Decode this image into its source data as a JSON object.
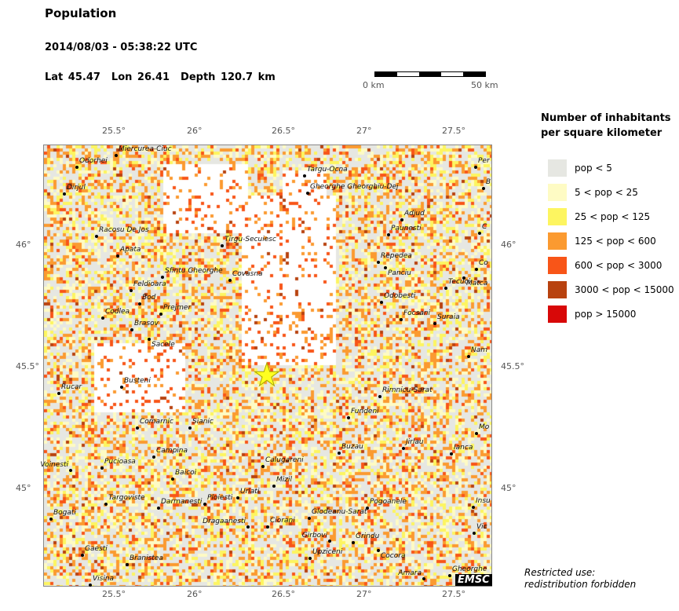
{
  "header": {
    "title": "Population",
    "datetime": "2014/08/03 - 05:38:22 UTC",
    "lat": "Lat 45.47",
    "lon": "Lon  26.41",
    "depth": "Depth 120.7 km"
  },
  "scale_bar": {
    "left": "0 km",
    "right": "50 km"
  },
  "axes": {
    "lon_ticks": [
      "25.5°",
      "26°",
      "26.5°",
      "27°",
      "27.5°"
    ],
    "lat_ticks": [
      "46°",
      "45.5°",
      "45°"
    ]
  },
  "epicenter": {
    "icon": "star-icon",
    "color": "#ffff20"
  },
  "cities": [
    "Miercurea-Ciuc",
    "Odorhei",
    "Dirjul",
    "Racosu De Jos",
    "Apata",
    "Sfintu Gheorghe",
    "Covasna",
    "Tirgu-Secuiesc",
    "Feldioara",
    "Bod",
    "Prejmer",
    "Codlea",
    "Brasov",
    "Sacele",
    "Targu-Ocna",
    "Gheorghe Gheorghiu-Dej",
    "Adjud",
    "Paunesti",
    "Repedea",
    "Panciu",
    "Odobesti",
    "Focsani",
    "Suraia",
    "Tecuci",
    "Matca",
    "Co",
    "C",
    "Per",
    "B",
    "Nam",
    "Rucar",
    "Busteni",
    "Comarnic",
    "Sianic",
    "Campina",
    "Voinesti",
    "Pucioasa",
    "Baicoi",
    "Targoviste",
    "Darmanesti",
    "Ploiesti",
    "Urlati",
    "Bogati",
    "Dragaanesti",
    "Ciorani",
    "Gaesti",
    "Branistea",
    "Visina",
    "Calugareni",
    "Mizil",
    "Rimnicu-Sarat",
    "Fundeni",
    "Buzau",
    "Jirlau",
    "Ianca",
    "Mo",
    "Pogoanele",
    "Glodeanu-Sarat",
    "Girbovi",
    "Grindu",
    "Cocora",
    "Upziceni",
    "Amara",
    "Gheorghe",
    "Insu",
    "Vic"
  ],
  "legend": {
    "title": "Number of inhabitants per square kilometer",
    "items": [
      {
        "label": "pop < 5",
        "color": "#e6e7e2"
      },
      {
        "label": "5 < pop < 25",
        "color": "#fefbc4"
      },
      {
        "label": "25 < pop < 125",
        "color": "#fdf560"
      },
      {
        "label": "125 < pop < 600",
        "color": "#fb9a30"
      },
      {
        "label": "600 < pop < 3000",
        "color": "#f85518"
      },
      {
        "label": "3000 < pop < 15000",
        "color": "#b8420f"
      },
      {
        "label": "pop > 15000",
        "color": "#d80808"
      }
    ]
  },
  "logo": "EMSC",
  "notice": [
    "Restricted use:",
    "redistribution forbidden"
  ]
}
